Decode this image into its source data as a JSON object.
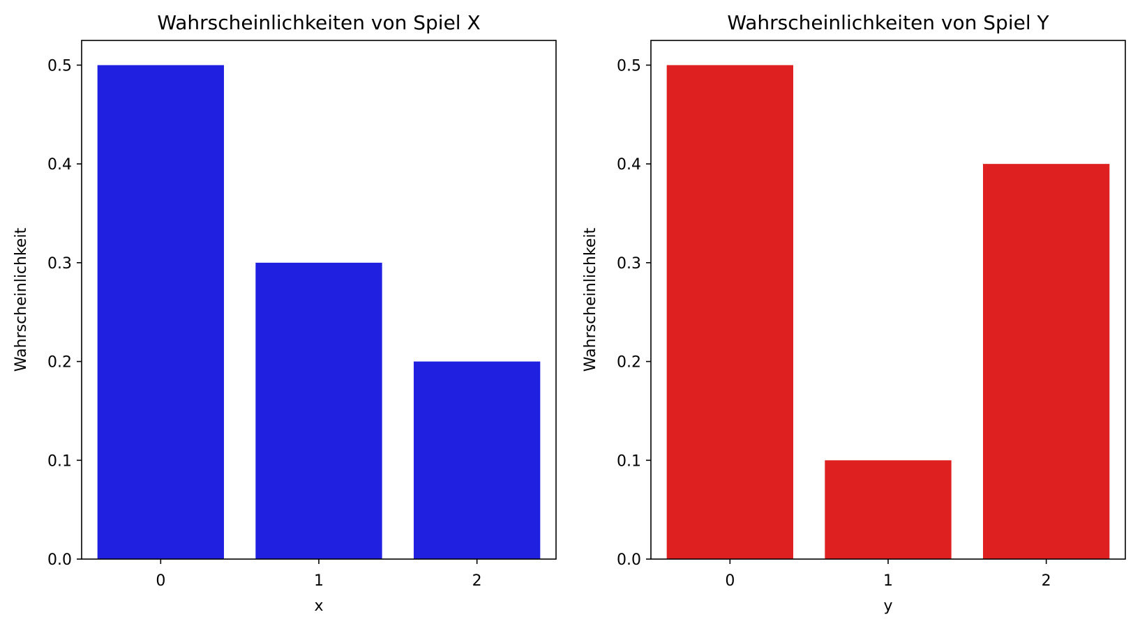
{
  "chart_data": [
    {
      "type": "bar",
      "title": "Wahrscheinlichkeiten von Spiel X",
      "xlabel": "x",
      "ylabel": "Wahrscheinlichkeit",
      "categories": [
        "0",
        "1",
        "2"
      ],
      "values": [
        0.5,
        0.3,
        0.2
      ],
      "ylim": [
        0,
        0.525
      ],
      "yticks": [
        "0.0",
        "0.1",
        "0.2",
        "0.3",
        "0.4",
        "0.5"
      ],
      "color": "#2020e0",
      "grid": false,
      "legend": "none"
    },
    {
      "type": "bar",
      "title": "Wahrscheinlichkeiten von Spiel Y",
      "xlabel": "y",
      "ylabel": "Wahrscheinlichkeit",
      "categories": [
        "0",
        "1",
        "2"
      ],
      "values": [
        0.5,
        0.1,
        0.4
      ],
      "ylim": [
        0,
        0.525
      ],
      "yticks": [
        "0.0",
        "0.1",
        "0.2",
        "0.3",
        "0.4",
        "0.5"
      ],
      "color": "#de2020",
      "grid": false,
      "legend": "none"
    }
  ]
}
